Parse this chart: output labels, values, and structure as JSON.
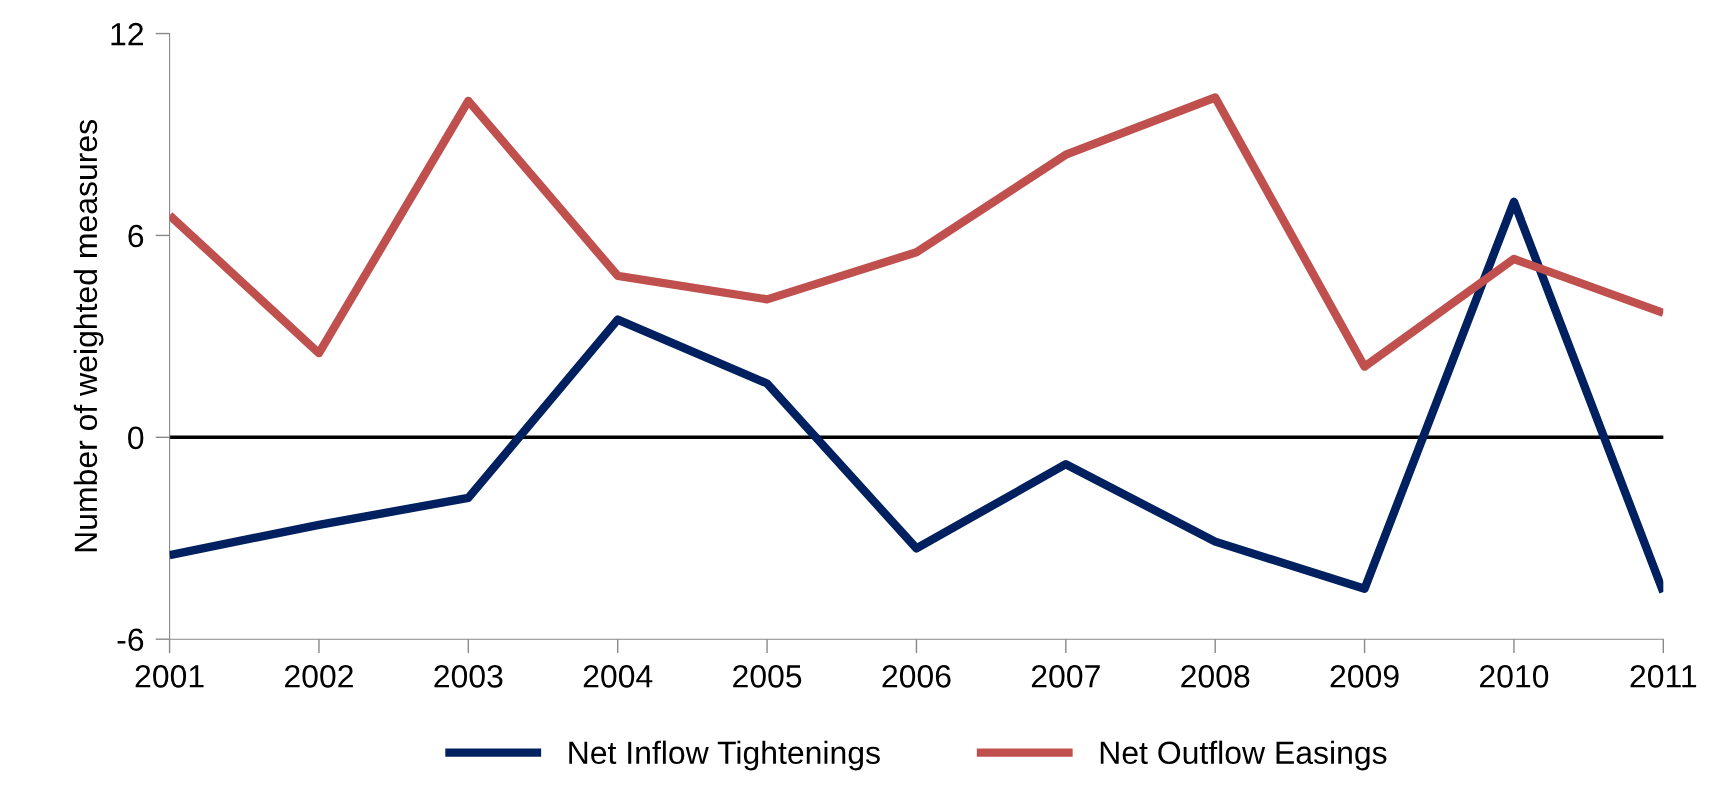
{
  "chart_data": {
    "type": "line",
    "ylabel": "Number of weighted measures",
    "x": [
      2001,
      2002,
      2003,
      2004,
      2005,
      2006,
      2007,
      2008,
      2009,
      2010,
      2011
    ],
    "xlim": [
      2001,
      2011
    ],
    "xticks": [
      2001,
      2002,
      2003,
      2004,
      2005,
      2006,
      2007,
      2008,
      2009,
      2010,
      2011
    ],
    "ylim": [
      -6,
      12
    ],
    "yticks": [
      -6,
      0,
      6,
      12
    ],
    "series": [
      {
        "name": "Net Inflow Tightenings",
        "color": "#002060",
        "values": [
          -3.5,
          -2.6,
          -1.8,
          3.5,
          1.6,
          -3.3,
          -0.8,
          -3.1,
          -4.5,
          7.0,
          -4.6
        ]
      },
      {
        "name": "Net Outflow Easings",
        "color": "#c0504d",
        "values": [
          6.6,
          2.5,
          10.0,
          4.8,
          4.1,
          5.5,
          8.4,
          10.1,
          2.1,
          5.3,
          3.7
        ]
      }
    ],
    "ref_lines": [
      {
        "axis": "y",
        "value": 0,
        "color": "#000000"
      }
    ],
    "grid": false,
    "legend": "bottom",
    "line_style": "solid",
    "marker": "none"
  }
}
